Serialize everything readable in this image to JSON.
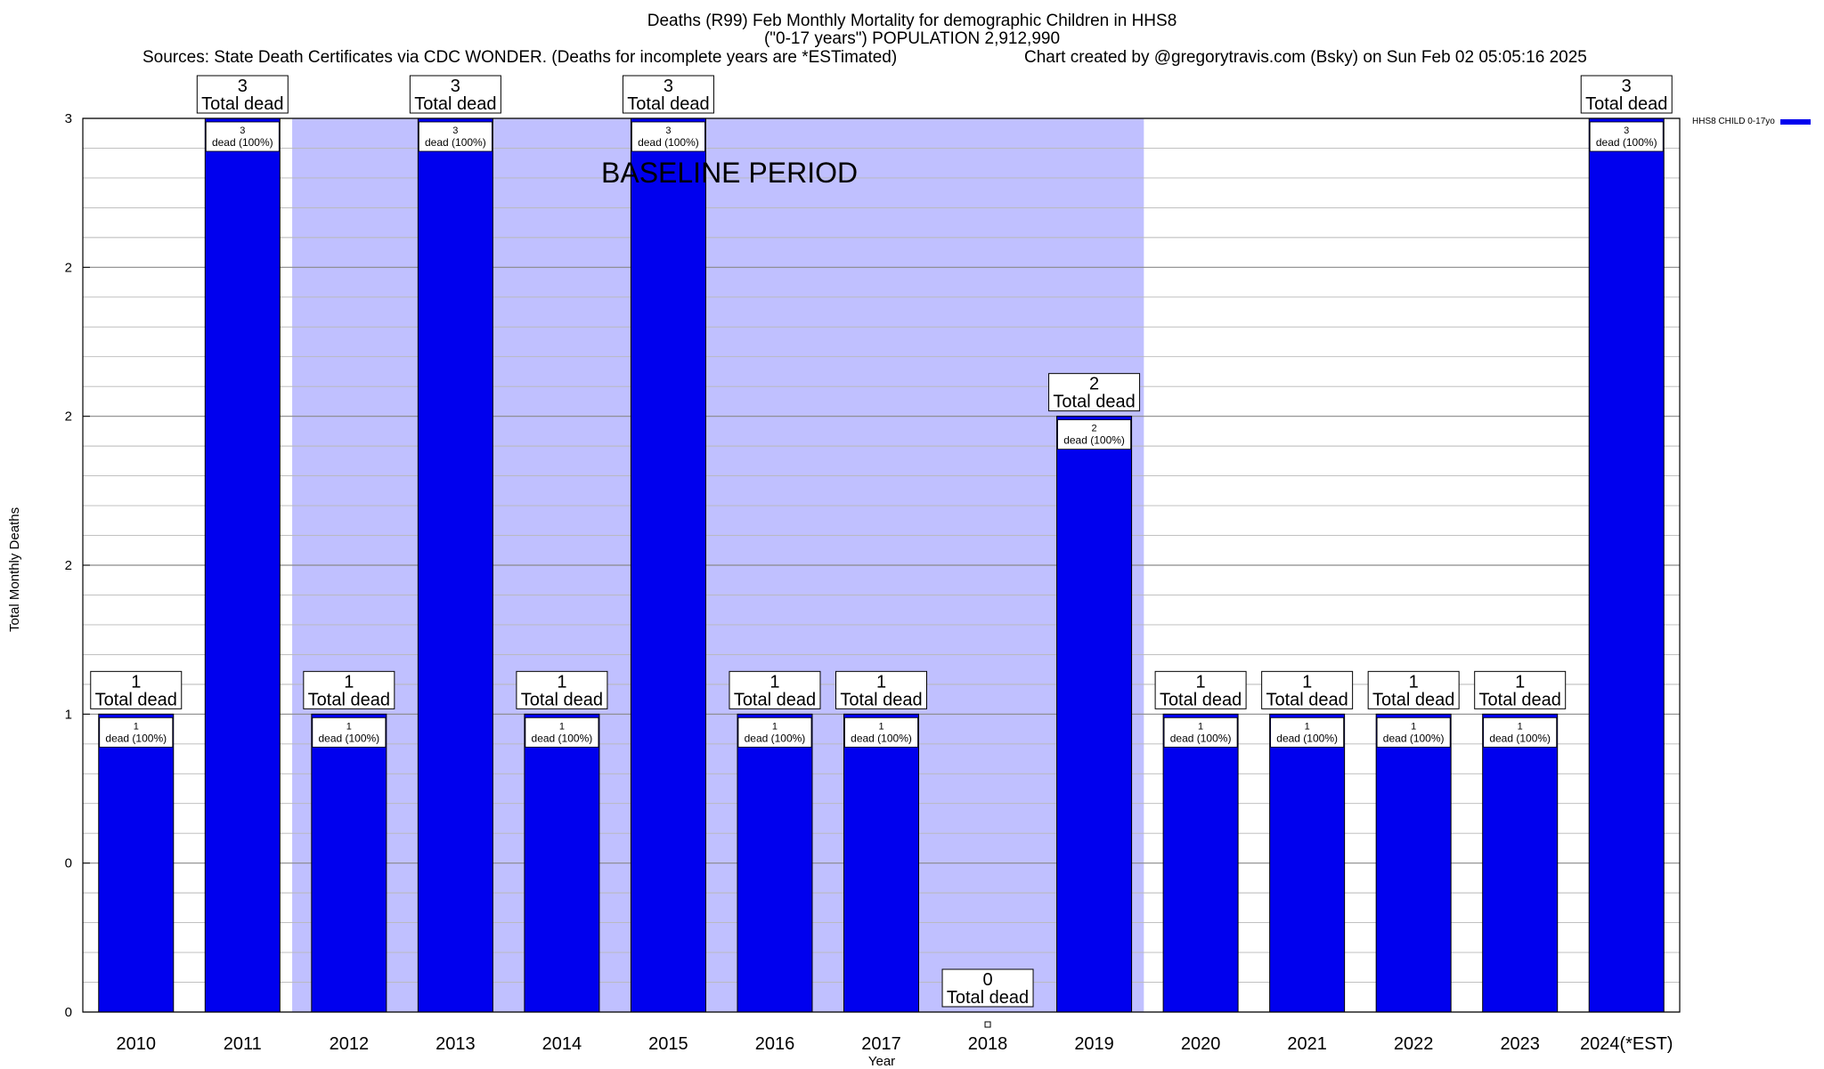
{
  "chart_data": {
    "type": "bar",
    "title": "Deaths (R99) Feb Monthly Mortality for demographic Children in HHS8",
    "subtitle": "(\"0-17 years\") POPULATION 2,912,990",
    "source_note": "Sources: State Death Certificates via CDC WONDER. (Deaths for incomplete years are *ESTimated)",
    "credit_note": "Chart created by @gregorytravis.com (Bsky) on Sun Feb 02 05:05:16 2025",
    "xlabel": "Year",
    "ylabel": "Total Monthly Deaths",
    "categories": [
      "2010",
      "2011",
      "2012",
      "2013",
      "2014",
      "2015",
      "2016",
      "2017",
      "2018",
      "2019",
      "2020",
      "2021",
      "2022",
      "2023",
      "2024(*EST)"
    ],
    "series": [
      {
        "name": "HHS8 CHILD 0-17yo",
        "color": "#0000ee",
        "values": [
          1,
          3,
          1,
          3,
          1,
          3,
          1,
          1,
          0,
          2,
          1,
          1,
          1,
          1,
          3
        ]
      }
    ],
    "ylim": [
      0,
      3
    ],
    "yticks": [
      0,
      0.5,
      1,
      1.5,
      2,
      2.5,
      3
    ],
    "ytick_labels": [
      "0",
      "0",
      "1",
      "2",
      "2",
      "2",
      "3"
    ],
    "total_label_suffix": "Total dead",
    "inner_label_suffix": "dead (100%)",
    "baseline": {
      "label": "BASELINE PERIOD",
      "from": "2012",
      "to": "2019",
      "color": "#c0c0ff"
    },
    "grid": true,
    "legend_position": "top-right"
  }
}
